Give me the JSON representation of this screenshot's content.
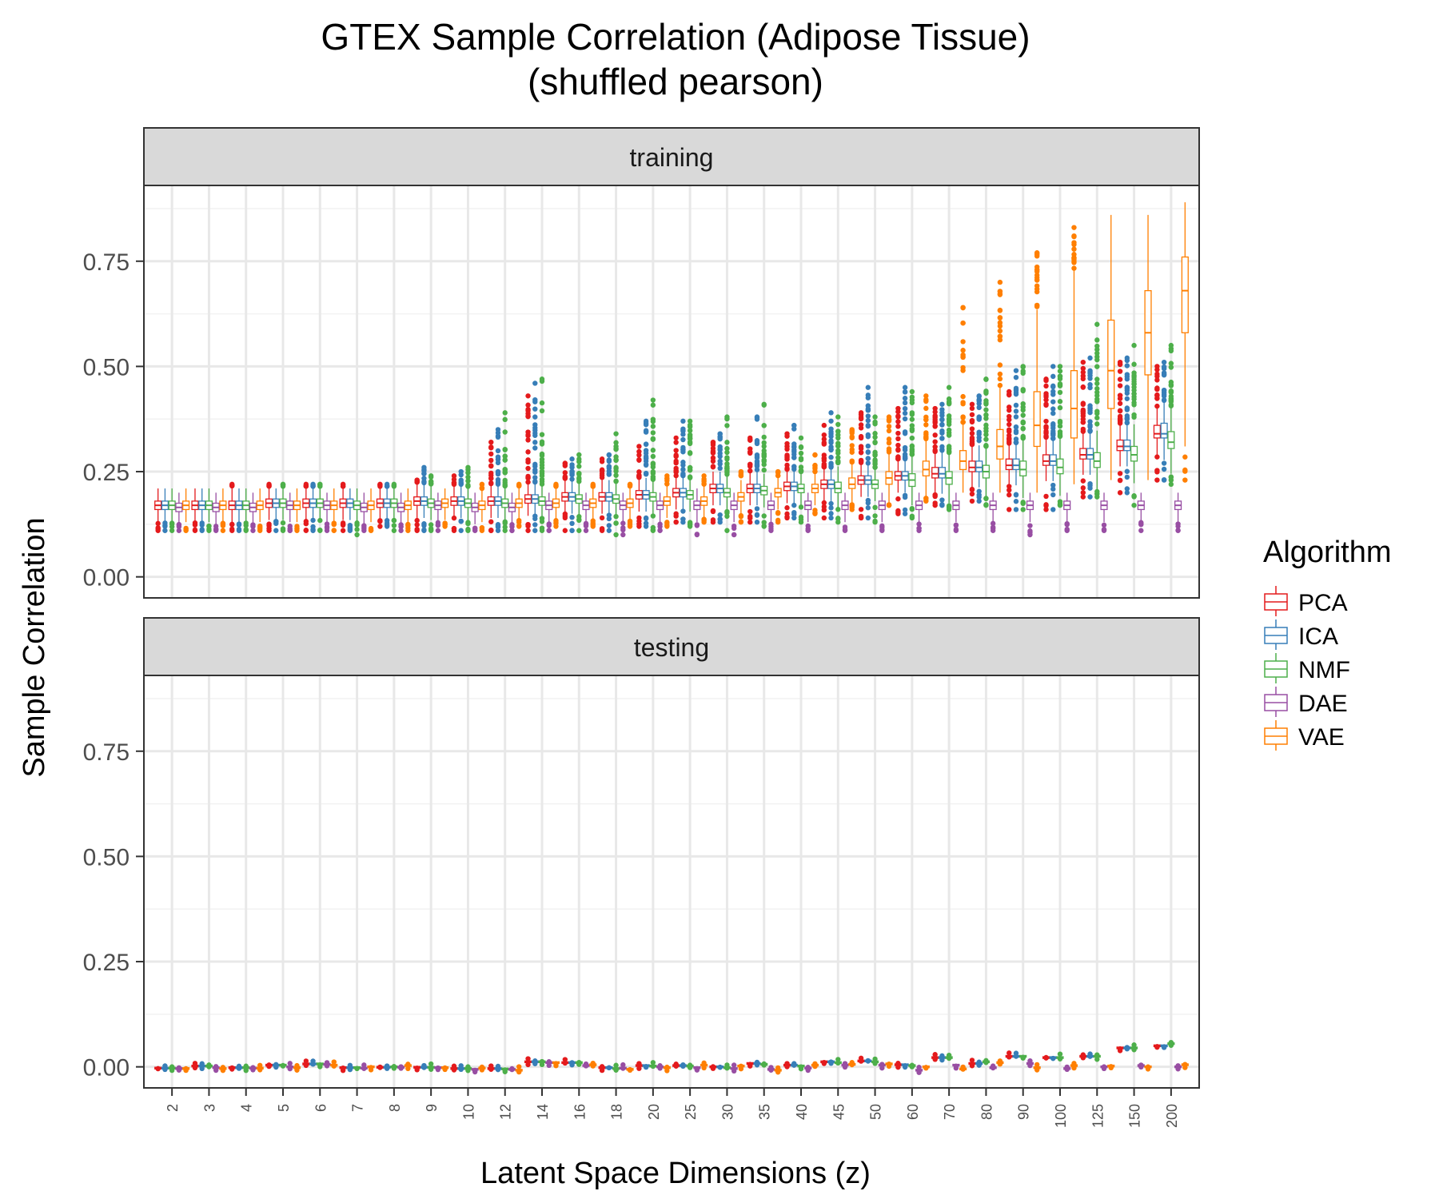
{
  "title": "GTEX Sample Correlation (Adipose Tissue)",
  "subtitle": "(shuffled pearson)",
  "xlabel": "Latent Space Dimensions (z)",
  "ylabel": "Sample Correlation",
  "legend_title": "Algorithm",
  "chart_data": {
    "type": "box",
    "title": "GTEX Sample Correlation (Adipose Tissue)",
    "subtitle": "(shuffled pearson)",
    "xlabel": "Latent Space Dimensions (z)",
    "ylabel": "Sample Correlation",
    "ylim": [
      -0.05,
      0.93
    ],
    "yticks": [
      0.0,
      0.25,
      0.5,
      0.75
    ],
    "ytick_labels": [
      "0.00",
      "0.25",
      "0.50",
      "0.75"
    ],
    "grid": true,
    "legend_position": "right",
    "categories": [
      "2",
      "3",
      "4",
      "5",
      "6",
      "7",
      "8",
      "9",
      "10",
      "12",
      "14",
      "16",
      "18",
      "20",
      "25",
      "30",
      "35",
      "40",
      "45",
      "50",
      "60",
      "70",
      "80",
      "90",
      "100",
      "125",
      "150",
      "200"
    ],
    "series": [
      {
        "name": "PCA",
        "color": "#e41a1c"
      },
      {
        "name": "ICA",
        "color": "#377eb8"
      },
      {
        "name": "NMF",
        "color": "#4daf4a"
      },
      {
        "name": "DAE",
        "color": "#984ea3"
      },
      {
        "name": "VAE",
        "color": "#ff7f00"
      }
    ],
    "panels": [
      {
        "label": "training",
        "medians": {
          "PCA": [
            0.17,
            0.17,
            0.17,
            0.175,
            0.175,
            0.175,
            0.175,
            0.18,
            0.18,
            0.18,
            0.185,
            0.19,
            0.19,
            0.195,
            0.2,
            0.21,
            0.21,
            0.215,
            0.22,
            0.23,
            0.24,
            0.245,
            0.26,
            0.265,
            0.275,
            0.29,
            0.31,
            0.34
          ],
          "ICA": [
            0.17,
            0.17,
            0.17,
            0.175,
            0.175,
            0.175,
            0.175,
            0.18,
            0.18,
            0.18,
            0.185,
            0.19,
            0.19,
            0.195,
            0.2,
            0.21,
            0.21,
            0.215,
            0.22,
            0.23,
            0.24,
            0.245,
            0.26,
            0.265,
            0.275,
            0.29,
            0.31,
            0.34
          ],
          "NMF": [
            0.17,
            0.17,
            0.17,
            0.175,
            0.175,
            0.17,
            0.175,
            0.175,
            0.175,
            0.175,
            0.18,
            0.185,
            0.185,
            0.19,
            0.195,
            0.2,
            0.205,
            0.21,
            0.21,
            0.22,
            0.23,
            0.235,
            0.25,
            0.255,
            0.26,
            0.275,
            0.29,
            0.32
          ],
          "DAE": [
            0.165,
            0.165,
            0.165,
            0.17,
            0.17,
            0.165,
            0.165,
            0.17,
            0.165,
            0.165,
            0.17,
            0.17,
            0.17,
            0.17,
            0.17,
            0.17,
            0.17,
            0.17,
            0.17,
            0.17,
            0.17,
            0.17,
            0.17,
            0.17,
            0.17,
            0.17,
            0.17,
            0.17
          ],
          "VAE": [
            0.17,
            0.17,
            0.17,
            0.17,
            0.17,
            0.17,
            0.17,
            0.175,
            0.17,
            0.175,
            0.175,
            0.175,
            0.175,
            0.18,
            0.18,
            0.19,
            0.2,
            0.21,
            0.22,
            0.235,
            0.255,
            0.275,
            0.31,
            0.36,
            0.4,
            0.49,
            0.58,
            0.68
          ]
        },
        "q1": {
          "PCA": [
            0.16,
            0.16,
            0.16,
            0.165,
            0.165,
            0.165,
            0.165,
            0.17,
            0.17,
            0.17,
            0.175,
            0.18,
            0.18,
            0.185,
            0.19,
            0.2,
            0.2,
            0.205,
            0.21,
            0.22,
            0.23,
            0.235,
            0.25,
            0.255,
            0.265,
            0.28,
            0.3,
            0.33
          ],
          "ICA": [
            0.16,
            0.16,
            0.16,
            0.165,
            0.165,
            0.165,
            0.165,
            0.17,
            0.17,
            0.17,
            0.175,
            0.18,
            0.18,
            0.185,
            0.19,
            0.2,
            0.2,
            0.205,
            0.21,
            0.22,
            0.23,
            0.235,
            0.25,
            0.255,
            0.265,
            0.28,
            0.3,
            0.33
          ],
          "NMF": [
            0.16,
            0.16,
            0.16,
            0.165,
            0.165,
            0.16,
            0.165,
            0.165,
            0.165,
            0.165,
            0.17,
            0.175,
            0.175,
            0.18,
            0.185,
            0.19,
            0.195,
            0.2,
            0.2,
            0.21,
            0.215,
            0.22,
            0.235,
            0.24,
            0.245,
            0.26,
            0.275,
            0.305
          ],
          "DAE": [
            0.155,
            0.155,
            0.155,
            0.16,
            0.16,
            0.155,
            0.155,
            0.16,
            0.155,
            0.155,
            0.16,
            0.16,
            0.16,
            0.16,
            0.16,
            0.16,
            0.16,
            0.16,
            0.16,
            0.16,
            0.16,
            0.16,
            0.16,
            0.16,
            0.16,
            0.16,
            0.16,
            0.16
          ],
          "VAE": [
            0.16,
            0.16,
            0.16,
            0.16,
            0.16,
            0.16,
            0.16,
            0.165,
            0.16,
            0.165,
            0.165,
            0.165,
            0.165,
            0.17,
            0.17,
            0.18,
            0.19,
            0.2,
            0.21,
            0.22,
            0.24,
            0.255,
            0.28,
            0.31,
            0.33,
            0.4,
            0.48,
            0.58
          ]
        },
        "q3": {
          "PCA": [
            0.18,
            0.18,
            0.18,
            0.185,
            0.185,
            0.185,
            0.185,
            0.19,
            0.19,
            0.19,
            0.195,
            0.2,
            0.2,
            0.205,
            0.21,
            0.22,
            0.22,
            0.225,
            0.23,
            0.24,
            0.25,
            0.26,
            0.275,
            0.28,
            0.29,
            0.305,
            0.325,
            0.36
          ],
          "ICA": [
            0.18,
            0.18,
            0.18,
            0.185,
            0.185,
            0.185,
            0.185,
            0.19,
            0.19,
            0.19,
            0.195,
            0.2,
            0.2,
            0.205,
            0.21,
            0.22,
            0.22,
            0.225,
            0.23,
            0.24,
            0.25,
            0.26,
            0.275,
            0.28,
            0.29,
            0.305,
            0.325,
            0.365
          ],
          "NMF": [
            0.18,
            0.18,
            0.18,
            0.185,
            0.185,
            0.18,
            0.185,
            0.185,
            0.185,
            0.185,
            0.19,
            0.195,
            0.195,
            0.2,
            0.205,
            0.21,
            0.215,
            0.22,
            0.225,
            0.23,
            0.245,
            0.25,
            0.265,
            0.275,
            0.28,
            0.295,
            0.31,
            0.345
          ],
          "DAE": [
            0.175,
            0.175,
            0.175,
            0.18,
            0.18,
            0.175,
            0.175,
            0.18,
            0.175,
            0.175,
            0.18,
            0.18,
            0.18,
            0.18,
            0.18,
            0.18,
            0.18,
            0.18,
            0.18,
            0.18,
            0.18,
            0.18,
            0.18,
            0.18,
            0.18,
            0.18,
            0.18,
            0.18
          ],
          "VAE": [
            0.18,
            0.18,
            0.18,
            0.18,
            0.18,
            0.18,
            0.18,
            0.185,
            0.18,
            0.185,
            0.185,
            0.185,
            0.185,
            0.19,
            0.19,
            0.2,
            0.21,
            0.22,
            0.235,
            0.25,
            0.275,
            0.3,
            0.35,
            0.44,
            0.49,
            0.61,
            0.68,
            0.76
          ]
        },
        "max": {
          "PCA": [
            0.21,
            0.21,
            0.22,
            0.22,
            0.22,
            0.22,
            0.22,
            0.23,
            0.24,
            0.32,
            0.43,
            0.27,
            0.28,
            0.31,
            0.33,
            0.32,
            0.33,
            0.34,
            0.36,
            0.39,
            0.4,
            0.4,
            0.41,
            0.44,
            0.47,
            0.51,
            0.51,
            0.5
          ],
          "ICA": [
            0.21,
            0.21,
            0.21,
            0.21,
            0.22,
            0.21,
            0.22,
            0.26,
            0.25,
            0.35,
            0.46,
            0.28,
            0.29,
            0.37,
            0.37,
            0.34,
            0.38,
            0.36,
            0.39,
            0.45,
            0.45,
            0.41,
            0.43,
            0.49,
            0.5,
            0.52,
            0.52,
            0.51
          ],
          "NMF": [
            0.21,
            0.21,
            0.21,
            0.22,
            0.22,
            0.21,
            0.22,
            0.24,
            0.26,
            0.39,
            0.47,
            0.29,
            0.34,
            0.42,
            0.37,
            0.38,
            0.41,
            0.33,
            0.38,
            0.38,
            0.44,
            0.45,
            0.47,
            0.5,
            0.5,
            0.6,
            0.55,
            0.55
          ],
          "DAE": [
            0.2,
            0.2,
            0.2,
            0.2,
            0.2,
            0.2,
            0.2,
            0.2,
            0.2,
            0.2,
            0.2,
            0.2,
            0.2,
            0.2,
            0.21,
            0.2,
            0.2,
            0.2,
            0.2,
            0.2,
            0.2,
            0.2,
            0.2,
            0.2,
            0.2,
            0.2,
            0.2,
            0.2
          ],
          "VAE": [
            0.21,
            0.21,
            0.21,
            0.21,
            0.21,
            0.21,
            0.21,
            0.21,
            0.22,
            0.22,
            0.22,
            0.22,
            0.22,
            0.24,
            0.24,
            0.25,
            0.25,
            0.29,
            0.35,
            0.38,
            0.43,
            0.64,
            0.7,
            0.77,
            0.83,
            0.86,
            0.86,
            0.89
          ]
        },
        "min": {
          "PCA": [
            0.11,
            0.11,
            0.11,
            0.11,
            0.11,
            0.11,
            0.12,
            0.11,
            0.11,
            0.11,
            0.11,
            0.11,
            0.11,
            0.12,
            0.13,
            0.13,
            0.13,
            0.14,
            0.14,
            0.14,
            0.15,
            0.17,
            0.18,
            0.16,
            0.16,
            0.19,
            0.2,
            0.23
          ],
          "ICA": [
            0.11,
            0.11,
            0.11,
            0.11,
            0.11,
            0.11,
            0.12,
            0.11,
            0.11,
            0.11,
            0.11,
            0.11,
            0.11,
            0.12,
            0.13,
            0.13,
            0.13,
            0.14,
            0.14,
            0.14,
            0.15,
            0.17,
            0.18,
            0.16,
            0.16,
            0.19,
            0.2,
            0.23
          ],
          "NMF": [
            0.11,
            0.11,
            0.11,
            0.11,
            0.11,
            0.1,
            0.11,
            0.11,
            0.11,
            0.11,
            0.11,
            0.11,
            0.1,
            0.11,
            0.12,
            0.11,
            0.12,
            0.13,
            0.13,
            0.13,
            0.14,
            0.16,
            0.17,
            0.16,
            0.17,
            0.19,
            0.17,
            0.22
          ],
          "DAE": [
            0.11,
            0.11,
            0.11,
            0.11,
            0.11,
            0.11,
            0.11,
            0.11,
            0.11,
            0.11,
            0.11,
            0.11,
            0.1,
            0.11,
            0.1,
            0.1,
            0.11,
            0.11,
            0.11,
            0.11,
            0.11,
            0.11,
            0.11,
            0.1,
            0.11,
            0.11,
            0.11,
            0.11
          ],
          "VAE": [
            0.11,
            0.11,
            0.11,
            0.11,
            0.11,
            0.11,
            0.11,
            0.12,
            0.11,
            0.12,
            0.12,
            0.12,
            0.12,
            0.12,
            0.13,
            0.13,
            0.13,
            0.15,
            0.16,
            0.17,
            0.18,
            0.2,
            0.2,
            0.2,
            0.22,
            0.23,
            0.23,
            0.23
          ]
        }
      },
      {
        "label": "testing",
        "medians": {
          "PCA": [
            -0.003,
            0.002,
            -0.002,
            0.004,
            0.007,
            -0.002,
            -0.001,
            -0.001,
            -0.004,
            -0.004,
            0.012,
            0.01,
            -0.002,
            0.003,
            0.003,
            0.0,
            0.008,
            0.004,
            0.012,
            0.014,
            0.005,
            0.022,
            0.008,
            0.025,
            0.022,
            0.025,
            0.045,
            0.05
          ],
          "ICA": [
            -0.003,
            0.002,
            -0.002,
            0.004,
            0.007,
            -0.002,
            -0.001,
            -0.001,
            -0.004,
            -0.004,
            0.012,
            0.01,
            -0.002,
            0.003,
            0.003,
            0.0,
            0.008,
            0.004,
            0.012,
            0.014,
            0.005,
            0.022,
            0.008,
            0.025,
            0.022,
            0.025,
            0.045,
            0.05
          ],
          "NMF": [
            -0.003,
            0.002,
            -0.002,
            0.004,
            0.007,
            -0.002,
            0.0,
            -0.001,
            -0.004,
            -0.005,
            0.012,
            0.01,
            -0.004,
            0.002,
            0.002,
            -0.002,
            0.006,
            0.002,
            0.01,
            0.012,
            0.003,
            0.022,
            0.012,
            0.025,
            0.022,
            0.025,
            0.045,
            0.055
          ],
          "DAE": [
            -0.004,
            -0.002,
            -0.003,
            0.0,
            0.006,
            -0.003,
            -0.001,
            -0.002,
            -0.006,
            -0.006,
            0.01,
            0.003,
            -0.003,
            0.0,
            -0.002,
            -0.004,
            -0.006,
            -0.003,
            0.004,
            0.004,
            -0.008,
            0.004,
            -0.002,
            0.008,
            -0.004,
            0.0,
            0.003,
            0.0
          ],
          "VAE": [
            -0.004,
            -0.004,
            -0.003,
            -0.002,
            0.004,
            0.0,
            0.003,
            -0.002,
            -0.003,
            -0.008,
            0.01,
            0.005,
            -0.006,
            -0.002,
            0.004,
            0.002,
            -0.008,
            0.004,
            0.006,
            0.007,
            0.0,
            -0.005,
            0.01,
            -0.002,
            0.003,
            0.002,
            0.0,
            0.005
          ]
        },
        "spread": 0.004,
        "outlier_span": 0.012
      }
    ]
  }
}
